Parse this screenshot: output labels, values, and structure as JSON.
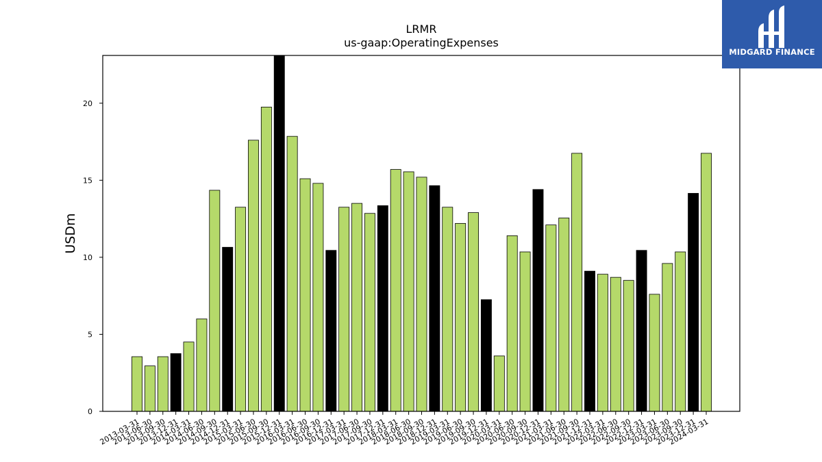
{
  "chart_data": {
    "type": "bar",
    "title": "LRMR",
    "subtitle": "us-gaap:OperatingExpenses",
    "xlabel": "",
    "ylabel": "USDm",
    "ylim": [
      0,
      23.1
    ],
    "yticks": [
      0,
      5,
      10,
      15,
      20
    ],
    "grid": false,
    "categories": [
      "2013-03-31",
      "2013-06-30",
      "2013-09-30",
      "2013-12-31",
      "2014-03-31",
      "2014-06-30",
      "2014-09-30",
      "2014-12-31",
      "2015-03-31",
      "2015-06-30",
      "2015-09-30",
      "2015-12-31",
      "2016-03-31",
      "2016-06-30",
      "2016-09-30",
      "2016-12-31",
      "2017-03-31",
      "2017-06-30",
      "2017-09-30",
      "2017-12-31",
      "2018-03-31",
      "2018-06-30",
      "2018-09-30",
      "2018-12-31",
      "2019-03-31",
      "2019-06-30",
      "2019-09-30",
      "2019-12-31",
      "2020-03-31",
      "2020-06-30",
      "2020-09-30",
      "2020-12-31",
      "2021-03-31",
      "2021-06-30",
      "2021-09-30",
      "2021-12-31",
      "2022-03-31",
      "2022-06-30",
      "2022-09-30",
      "2022-12-31",
      "2023-03-31",
      "2023-06-30",
      "2023-09-30",
      "2023-12-31",
      "2024-03-31"
    ],
    "values": [
      3.55,
      2.95,
      3.55,
      3.75,
      4.5,
      6.0,
      14.35,
      10.65,
      13.25,
      17.6,
      19.75,
      23.1,
      17.85,
      15.1,
      14.8,
      10.45,
      13.25,
      13.5,
      12.85,
      13.35,
      15.7,
      15.55,
      15.2,
      14.65,
      13.25,
      12.2,
      12.9,
      7.25,
      3.6,
      11.4,
      10.35,
      14.4,
      12.1,
      12.55,
      16.75,
      9.1,
      8.9,
      8.7,
      8.5,
      10.45,
      7.6,
      9.6,
      10.35,
      14.15,
      16.75
    ],
    "highlight_indices": [
      3,
      7,
      11,
      15,
      19,
      23,
      27,
      31,
      35,
      39,
      43
    ],
    "colors": {
      "bar": "#b5d96a",
      "highlight": "#000000",
      "edge": "#000000"
    }
  },
  "logo": {
    "text": "MIDGARD FINANCE",
    "background": "#2e5bab",
    "icon": "midgard-logo-icon"
  }
}
